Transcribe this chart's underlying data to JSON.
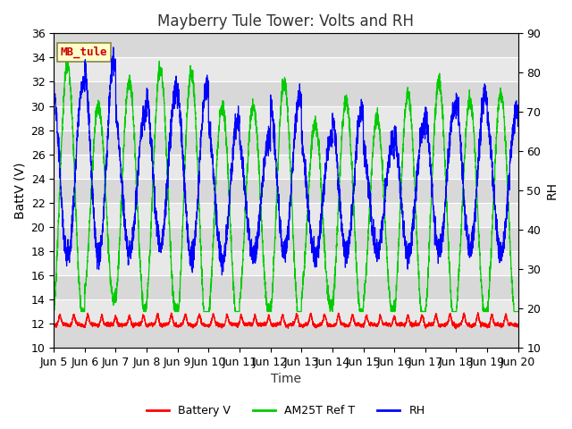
{
  "title": "Mayberry Tule Tower: Volts and RH",
  "xlabel": "Time",
  "ylabel_left": "BattV (V)",
  "ylabel_right": "RH",
  "ylim_left": [
    10,
    36
  ],
  "ylim_right": [
    10,
    90
  ],
  "yticks_left": [
    10,
    12,
    14,
    16,
    18,
    20,
    22,
    24,
    26,
    28,
    30,
    32,
    34,
    36
  ],
  "yticks_right": [
    10,
    20,
    30,
    40,
    50,
    60,
    70,
    80,
    90
  ],
  "xtick_labels": [
    "Jun 5",
    "Jun 6",
    "Jun 7",
    "Jun 8",
    "Jun 9",
    "Jun 10",
    "Jun 11",
    "Jun 12",
    "Jun 13",
    "Jun 14",
    "Jun 15",
    "Jun 16",
    "Jun 17",
    "Jun 18",
    "Jun 19",
    "Jun 20"
  ],
  "color_battery": "#ff0000",
  "color_am25t": "#00cc00",
  "color_rh": "#0000ff",
  "legend_labels": [
    "Battery V",
    "AM25T Ref T",
    "RH"
  ],
  "watermark_text": "MB_tule",
  "watermark_color": "#cc0000",
  "watermark_bg": "#ffffcc",
  "watermark_border": "#888844",
  "bg_color1": "#d8d8d8",
  "bg_color2": "#e8e8e8",
  "title_fontsize": 12,
  "label_fontsize": 10,
  "tick_fontsize": 9
}
